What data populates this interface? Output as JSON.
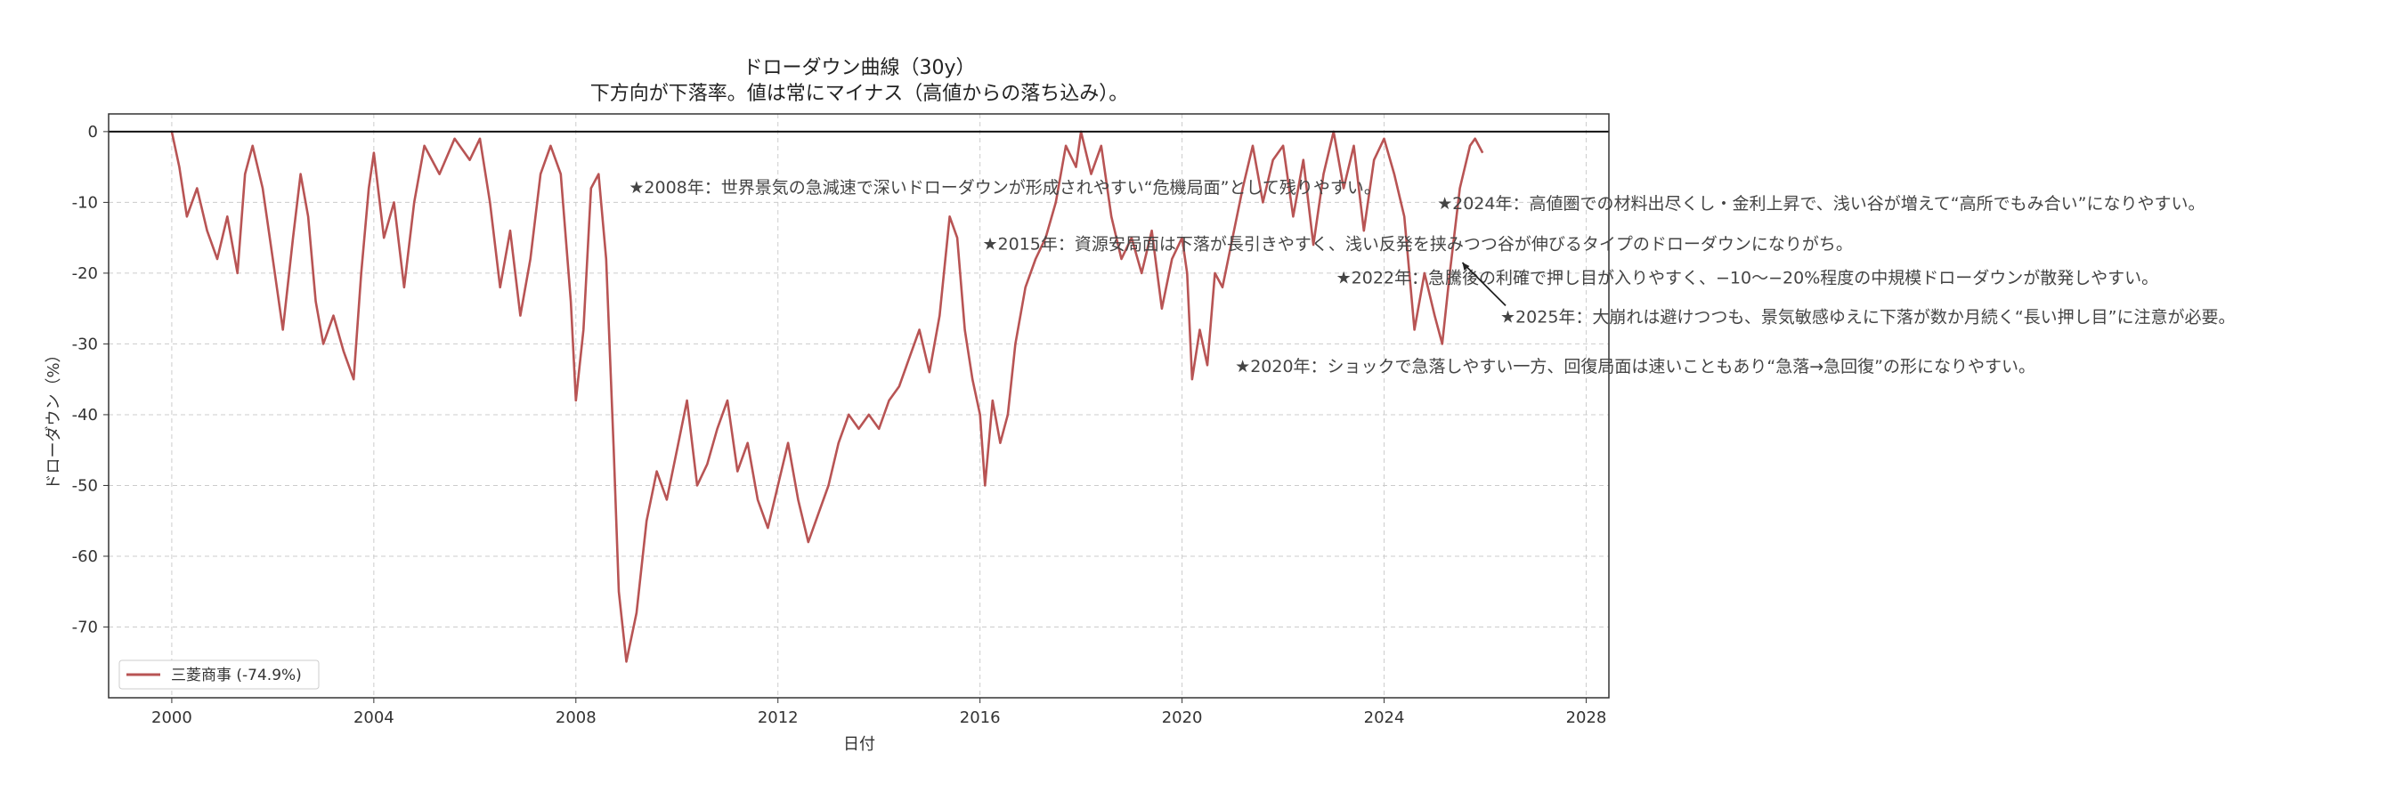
{
  "chart_data": {
    "type": "line",
    "title": "ドローダウン曲線（30y）",
    "subtitle": "下方向が下落率。値は常にマイナス（高値からの落ち込み）。",
    "xlabel": "日付",
    "ylabel": "ドローダウン（%）",
    "xlim": [
      1998.75,
      2028.45
    ],
    "ylim": [
      -80,
      2.5
    ],
    "x_ticks": [
      "2000",
      "2004",
      "2008",
      "2012",
      "2016",
      "2020",
      "2024",
      "2028"
    ],
    "y_ticks": [
      "0",
      "-10",
      "-20",
      "-30",
      "-40",
      "-50",
      "-60",
      "-70"
    ],
    "grid": true,
    "zero_line": true,
    "legend_position": "lower-left",
    "series": [
      {
        "name": "三菱商事 (-74.9%)",
        "color": "#b85454",
        "points": [
          [
            2000.0,
            0
          ],
          [
            2000.15,
            -5
          ],
          [
            2000.3,
            -12
          ],
          [
            2000.5,
            -8
          ],
          [
            2000.7,
            -14
          ],
          [
            2000.9,
            -18
          ],
          [
            2001.1,
            -12
          ],
          [
            2001.3,
            -20
          ],
          [
            2001.45,
            -6
          ],
          [
            2001.6,
            -2
          ],
          [
            2001.8,
            -8
          ],
          [
            2002.0,
            -18
          ],
          [
            2002.2,
            -28
          ],
          [
            2002.4,
            -15
          ],
          [
            2002.55,
            -6
          ],
          [
            2002.7,
            -12
          ],
          [
            2002.85,
            -24
          ],
          [
            2003.0,
            -30
          ],
          [
            2003.2,
            -26
          ],
          [
            2003.4,
            -31
          ],
          [
            2003.6,
            -35
          ],
          [
            2003.75,
            -20
          ],
          [
            2003.9,
            -8
          ],
          [
            2004.0,
            -3
          ],
          [
            2004.2,
            -15
          ],
          [
            2004.4,
            -10
          ],
          [
            2004.6,
            -22
          ],
          [
            2004.8,
            -10
          ],
          [
            2005.0,
            -2
          ],
          [
            2005.3,
            -6
          ],
          [
            2005.6,
            -1
          ],
          [
            2005.9,
            -4
          ],
          [
            2006.1,
            -1
          ],
          [
            2006.3,
            -10
          ],
          [
            2006.5,
            -22
          ],
          [
            2006.7,
            -14
          ],
          [
            2006.9,
            -26
          ],
          [
            2007.1,
            -18
          ],
          [
            2007.3,
            -6
          ],
          [
            2007.5,
            -2
          ],
          [
            2007.7,
            -6
          ],
          [
            2007.9,
            -24
          ],
          [
            2008.0,
            -38
          ],
          [
            2008.15,
            -28
          ],
          [
            2008.3,
            -8
          ],
          [
            2008.45,
            -6
          ],
          [
            2008.6,
            -18
          ],
          [
            2008.75,
            -45
          ],
          [
            2008.85,
            -65
          ],
          [
            2009.0,
            -74.9
          ],
          [
            2009.2,
            -68
          ],
          [
            2009.4,
            -55
          ],
          [
            2009.6,
            -48
          ],
          [
            2009.8,
            -52
          ],
          [
            2010.0,
            -45
          ],
          [
            2010.2,
            -38
          ],
          [
            2010.4,
            -50
          ],
          [
            2010.6,
            -47
          ],
          [
            2010.8,
            -42
          ],
          [
            2011.0,
            -38
          ],
          [
            2011.2,
            -48
          ],
          [
            2011.4,
            -44
          ],
          [
            2011.6,
            -52
          ],
          [
            2011.8,
            -56
          ],
          [
            2012.0,
            -50
          ],
          [
            2012.2,
            -44
          ],
          [
            2012.4,
            -52
          ],
          [
            2012.6,
            -58
          ],
          [
            2012.8,
            -54
          ],
          [
            2013.0,
            -50
          ],
          [
            2013.2,
            -44
          ],
          [
            2013.4,
            -40
          ],
          [
            2013.6,
            -42
          ],
          [
            2013.8,
            -40
          ],
          [
            2014.0,
            -42
          ],
          [
            2014.2,
            -38
          ],
          [
            2014.4,
            -36
          ],
          [
            2014.6,
            -32
          ],
          [
            2014.8,
            -28
          ],
          [
            2015.0,
            -34
          ],
          [
            2015.2,
            -26
          ],
          [
            2015.4,
            -12
          ],
          [
            2015.55,
            -15
          ],
          [
            2015.7,
            -28
          ],
          [
            2015.85,
            -35
          ],
          [
            2016.0,
            -40
          ],
          [
            2016.1,
            -50
          ],
          [
            2016.25,
            -38
          ],
          [
            2016.4,
            -44
          ],
          [
            2016.55,
            -40
          ],
          [
            2016.7,
            -30
          ],
          [
            2016.9,
            -22
          ],
          [
            2017.1,
            -18
          ],
          [
            2017.3,
            -15
          ],
          [
            2017.5,
            -10
          ],
          [
            2017.7,
            -2
          ],
          [
            2017.9,
            -5
          ],
          [
            2018.0,
            0
          ],
          [
            2018.2,
            -6
          ],
          [
            2018.4,
            -2
          ],
          [
            2018.6,
            -12
          ],
          [
            2018.8,
            -18
          ],
          [
            2019.0,
            -15
          ],
          [
            2019.2,
            -20
          ],
          [
            2019.4,
            -14
          ],
          [
            2019.6,
            -25
          ],
          [
            2019.8,
            -18
          ],
          [
            2020.0,
            -15
          ],
          [
            2020.1,
            -20
          ],
          [
            2020.2,
            -35
          ],
          [
            2020.35,
            -28
          ],
          [
            2020.5,
            -33
          ],
          [
            2020.65,
            -20
          ],
          [
            2020.8,
            -22
          ],
          [
            2021.0,
            -15
          ],
          [
            2021.2,
            -8
          ],
          [
            2021.4,
            -2
          ],
          [
            2021.6,
            -10
          ],
          [
            2021.8,
            -4
          ],
          [
            2022.0,
            -2
          ],
          [
            2022.2,
            -12
          ],
          [
            2022.4,
            -4
          ],
          [
            2022.6,
            -16
          ],
          [
            2022.8,
            -6
          ],
          [
            2023.0,
            0
          ],
          [
            2023.2,
            -8
          ],
          [
            2023.4,
            -2
          ],
          [
            2023.6,
            -14
          ],
          [
            2023.8,
            -4
          ],
          [
            2024.0,
            -1
          ],
          [
            2024.2,
            -6
          ],
          [
            2024.4,
            -12
          ],
          [
            2024.6,
            -28
          ],
          [
            2024.8,
            -20
          ],
          [
            2025.0,
            -26
          ],
          [
            2025.15,
            -30
          ],
          [
            2025.3,
            -20
          ],
          [
            2025.5,
            -8
          ],
          [
            2025.7,
            -2
          ],
          [
            2025.8,
            -1
          ],
          [
            2025.95,
            -3
          ]
        ]
      }
    ],
    "annotations": [
      {
        "x": 2009.05,
        "y": -7.8,
        "text": "★2008年：世界景気の急減速で深いドローダウンが形成されやすい“危機局面”として残りやすい。"
      },
      {
        "x": 2016.05,
        "y": -15.8,
        "text": "★2015年：資源安局面は下落が長引きやすく、浅い反発を挟みつつ谷が伸びるタイプのドローダウンになりがち。"
      },
      {
        "x": 2023.05,
        "y": -20.6,
        "text": "★2022年：急騰後の利確で押し目が入りやすく、−10〜−20%程度の中規模ドローダウンが散発しやすい。"
      },
      {
        "x": 2025.05,
        "y": -10.1,
        "text": "★2024年：高値圏での材料出尽くし・金利上昇で、浅い谷が増えて“高所でもみ合い”になりやすい。"
      },
      {
        "x": 2026.3,
        "y": -26.1,
        "text": "★2025年：大崩れは避けつつも、景気敏感ゆえに下落が数か月続く“長い押し目”に注意が必要。",
        "arrow_to": [
          2025.55,
          -18.5
        ]
      },
      {
        "x": 2021.05,
        "y": -33.1,
        "text": "★2020年：ショックで急落しやすい一方、回復局面は速いこともあり“急落→急回復”の形になりやすい。"
      }
    ]
  }
}
